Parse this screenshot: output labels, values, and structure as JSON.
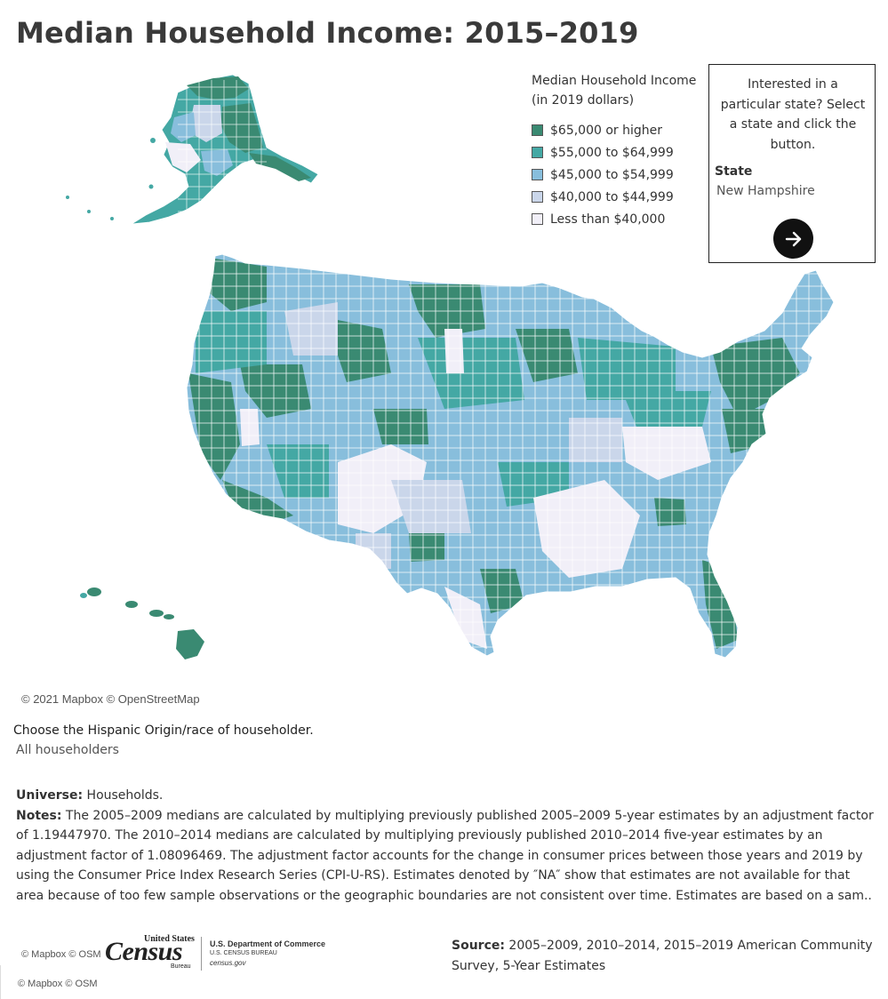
{
  "title": "Median Household Income: 2015–2019",
  "legend": {
    "title_line1": "Median Household Income",
    "title_line2": "(in 2019 dollars)",
    "items": [
      {
        "label": "$65,000 or higher",
        "color": "#3a8a72"
      },
      {
        "label": "$55,000 to $64,999",
        "color": "#44a8a4"
      },
      {
        "label": "$45,000 to $54,999",
        "color": "#88bedc"
      },
      {
        "label": "$40,000 to $44,999",
        "color": "#cad6ea"
      },
      {
        "label": "Less than $40,000",
        "color": "#f1eff8"
      }
    ]
  },
  "state_panel": {
    "prompt": "Interested in a particular state? Select a state and click the button.",
    "label": "State",
    "selected": "New Hampshire",
    "button_icon": "arrow-right-icon"
  },
  "map": {
    "attribution": "© 2021 Mapbox © OpenStreetMap",
    "regions": [
      "Alaska",
      "Hawaii",
      "Contiguous United States"
    ]
  },
  "filter": {
    "label": "Choose the Hispanic Origin/race of householder.",
    "value": "All householders"
  },
  "notes": {
    "universe_label": "Universe:",
    "universe_text": "Households.",
    "notes_label": "Notes:",
    "notes_text": "The 2005–2009 medians are calculated by multiplying previously published 2005–2009 5-year estimates by an adjustment factor of 1.19447970. The 2010–2014 medians are calculated by multiplying previously published 2010–2014 five-year estimates by an adjustment factor of 1.08096469. The adjustment factor accounts for the change in consumer prices between those years and 2019 by using the Consumer Price Index Research Series (CPI-U-RS). Estimates denoted by ″NA″ show that estimates are not available for that area because of too few sample observations or the geographic boundaries are not consistent over time. Estimates are based on a sam.."
  },
  "footer": {
    "attribution_1": "© Mapbox © OSM",
    "attribution_2": "© Mapbox © OSM",
    "logo_small": "United States",
    "logo_big": "Census",
    "logo_bureau": "Bureau",
    "dept_line1": "U.S. Department of Commerce",
    "dept_line2": "U.S. CENSUS BUREAU",
    "dept_line3": "census.gov",
    "source_label": "Source:",
    "source_text": "2005–2009, 2010–2014, 2015–2019 American Community Survey, 5-Year Estimates"
  }
}
